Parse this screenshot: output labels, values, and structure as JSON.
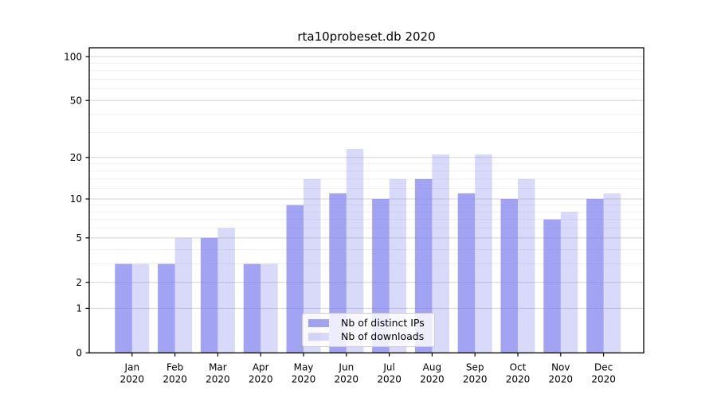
{
  "chart_data": {
    "type": "bar",
    "title": "rta10probeset.db 2020",
    "categories": [
      "Jan",
      "Feb",
      "Mar",
      "Apr",
      "May",
      "Jun",
      "Jul",
      "Aug",
      "Sep",
      "Oct",
      "Nov",
      "Dec"
    ],
    "category_year": "2020",
    "series": [
      {
        "name": "Nb of distinct IPs",
        "base_color": "#8080ee",
        "alpha": 0.72,
        "values": [
          3,
          3,
          5,
          3,
          9,
          11,
          10,
          14,
          11,
          10,
          7,
          10
        ]
      },
      {
        "name": "Nb of downloads",
        "base_color": "#8080ee",
        "alpha": 0.3,
        "values": [
          3,
          5,
          6,
          3,
          14,
          23,
          14,
          21,
          21,
          14,
          8,
          11
        ]
      }
    ],
    "y_axis": {
      "scale": "log10(1+y)",
      "ticks": [
        0,
        1,
        2,
        5,
        10,
        20,
        50,
        100
      ],
      "minor_ticks": [
        3,
        4,
        6,
        7,
        8,
        9,
        12,
        14,
        16,
        18,
        30,
        40,
        60,
        70,
        80,
        90
      ],
      "max": 115
    },
    "grid": {
      "major_color": "#d4d4d4",
      "minor_color": "#ebebeb"
    },
    "axis_color": "#000000",
    "text_color": "#000000",
    "legend_position": "lower center"
  }
}
